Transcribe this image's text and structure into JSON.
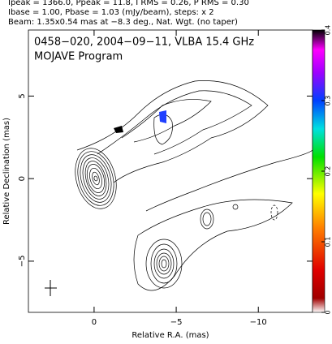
{
  "chart_data": {
    "type": "contour",
    "header": [
      "Ipeak = 1366.0, Ppeak = 11.8, I RMS = 0.26, P RMS = 0.30",
      "Ibase = 1.00, Pbase = 1.03 (mJy/beam), steps: x 2",
      "Beam: 1.35x0.54 mas at −8.3 deg., Nat. Wgt. (no taper)"
    ],
    "title": "0458−020, 2004−09−11, VLBA 15.4 GHz",
    "subtitle": "MOJAVE Program",
    "xlabel": "Relative R.A. (mas)",
    "ylabel": "Relative Declination (mas)",
    "xlim": [
      4.0,
      -13.3
    ],
    "xticks": [
      0,
      {
        "value": -5,
        "label": "−5"
      },
      {
        "value": -10,
        "label": "−10"
      }
    ],
    "ylim": [
      -8.1,
      9.0
    ],
    "yticks": [
      {
        "value": -5,
        "label": "−5"
      },
      0,
      5
    ],
    "colorbar": {
      "lim": [
        0,
        0.4
      ],
      "ticks": [
        0,
        0.1,
        0.2,
        0.3,
        0.4
      ]
    }
  }
}
